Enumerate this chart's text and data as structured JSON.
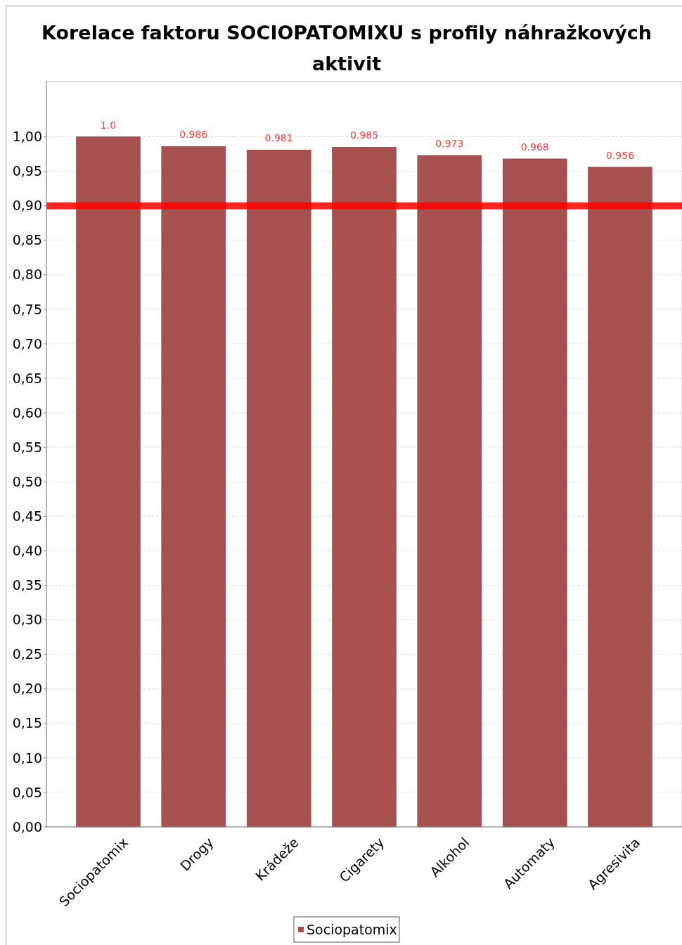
{
  "chart_data": {
    "type": "bar",
    "title": "Korelace faktoru SOCIOPATOMIXU s profily náhražkových aktivit",
    "categories": [
      "Sociopatomix",
      "Drogy",
      "Krádeže",
      "Cigarety",
      "Alkohol",
      "Automaty",
      "Agresivita"
    ],
    "series": [
      {
        "name": "Sociopatomix",
        "color": "#a65050",
        "values": [
          1.0,
          0.986,
          0.981,
          0.985,
          0.973,
          0.968,
          0.956
        ],
        "value_labels": [
          "1.0",
          "0.986",
          "0.981",
          "0.985",
          "0.973",
          "0.968",
          "0.956"
        ]
      }
    ],
    "ylim": [
      0,
      1.08
    ],
    "yticks": [
      {
        "value": 0,
        "label": "0,00"
      },
      {
        "value": 0.05,
        "label": "0,05"
      },
      {
        "value": 0.1,
        "label": "0,10"
      },
      {
        "value": 0.15,
        "label": "0,15"
      },
      {
        "value": 0.2,
        "label": "0,20"
      },
      {
        "value": 0.25,
        "label": "0,25"
      },
      {
        "value": 0.3,
        "label": "0,30"
      },
      {
        "value": 0.35,
        "label": "0,35"
      },
      {
        "value": 0.4,
        "label": "0,40"
      },
      {
        "value": 0.45,
        "label": "0,45"
      },
      {
        "value": 0.5,
        "label": "0,50"
      },
      {
        "value": 0.55,
        "label": "0,55"
      },
      {
        "value": 0.6,
        "label": "0,60"
      },
      {
        "value": 0.65,
        "label": "0,65"
      },
      {
        "value": 0.7,
        "label": "0,70"
      },
      {
        "value": 0.75,
        "label": "0,75"
      },
      {
        "value": 0.8,
        "label": "0,80"
      },
      {
        "value": 0.85,
        "label": "0,85"
      },
      {
        "value": 0.9,
        "label": "0,90"
      },
      {
        "value": 0.95,
        "label": "0,95"
      },
      {
        "value": 1.0,
        "label": "1,00"
      }
    ],
    "ref_lines": [
      {
        "axis": "y",
        "value": 0.9,
        "color": "#ff0000"
      }
    ],
    "grid": "y",
    "legend": "bottom"
  }
}
